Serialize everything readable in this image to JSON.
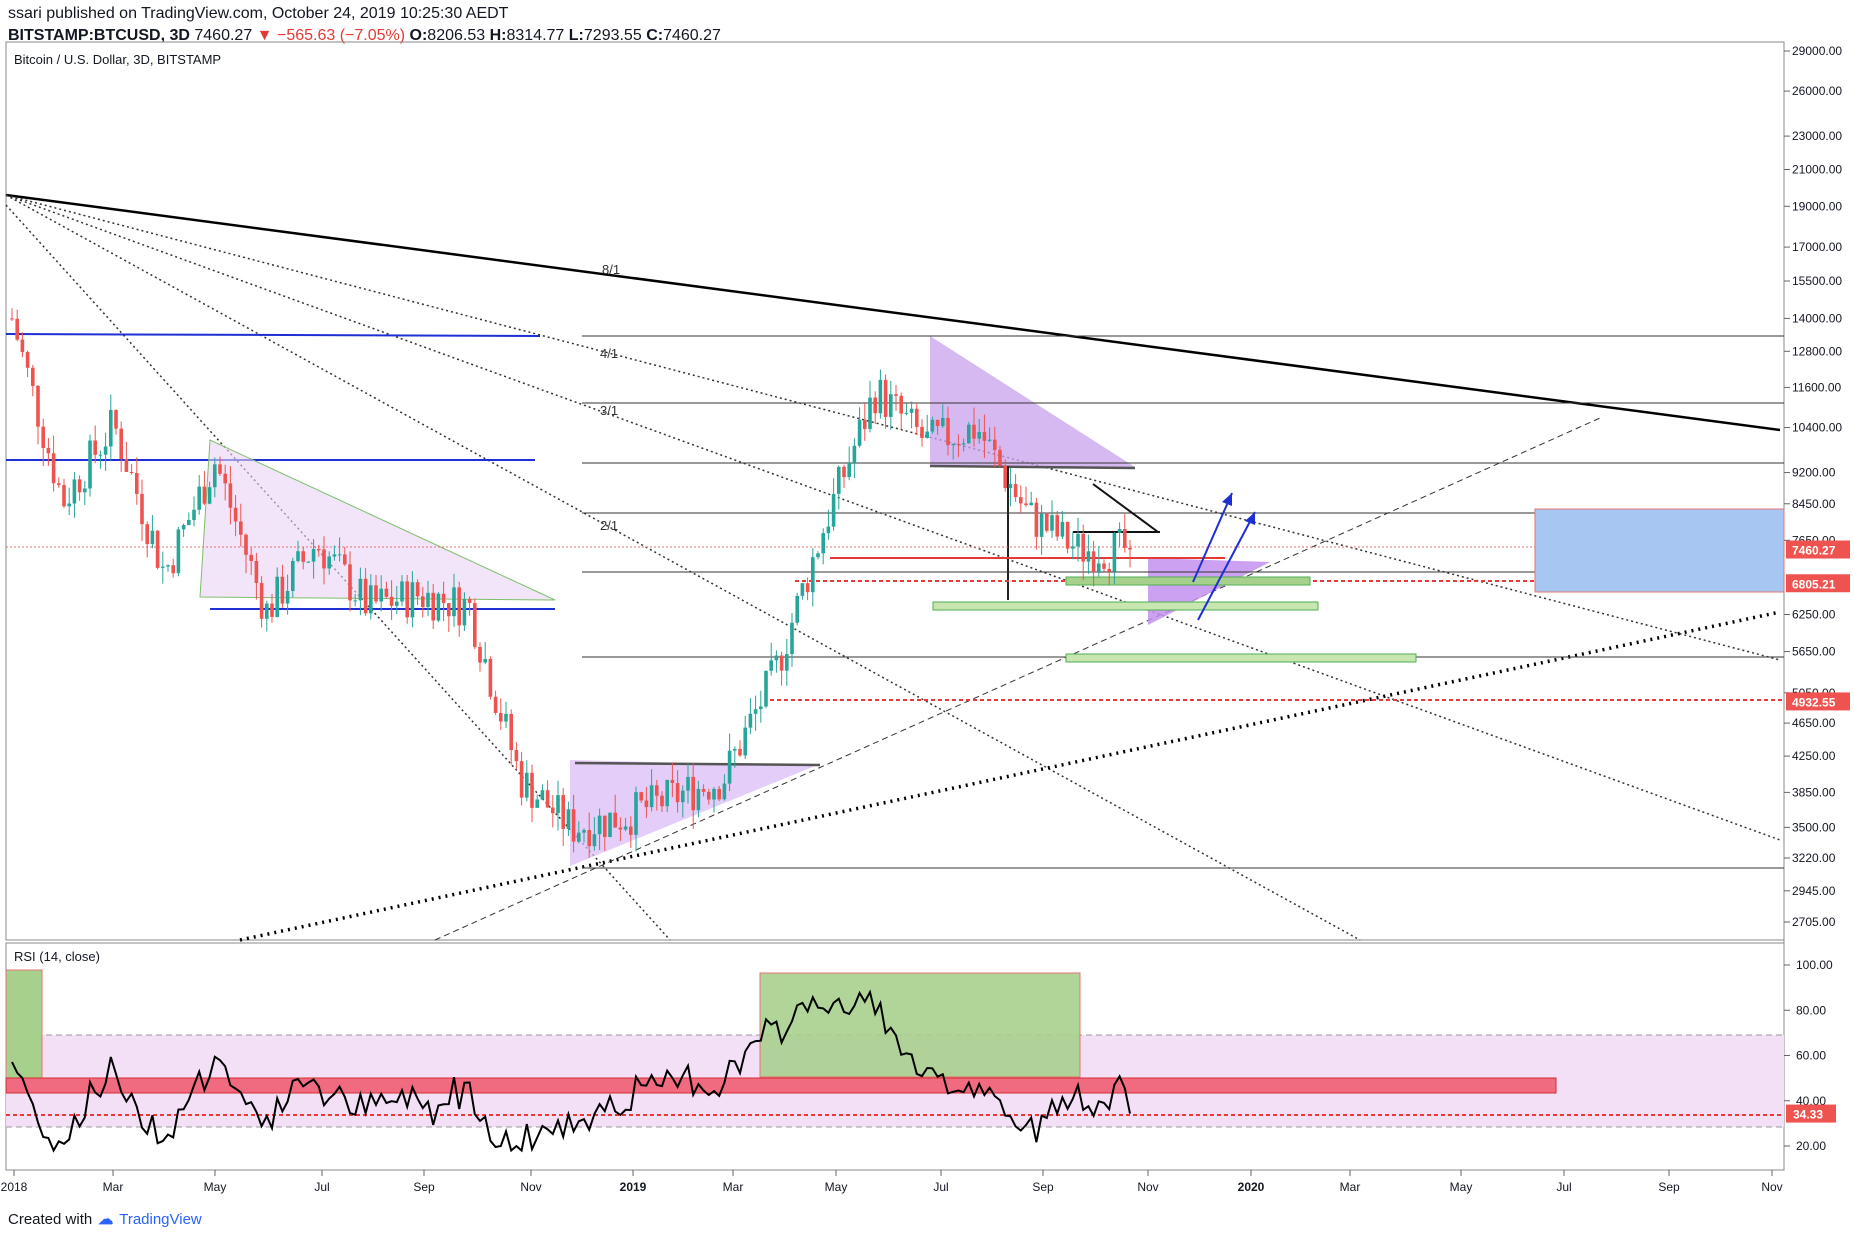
{
  "header": {
    "published_line": "ssari published on TradingView.com, October 24, 2019 10:25:30 AEDT",
    "symbol": "BITSTAMP:BTCUSD, 3D",
    "last": "7460.27",
    "change": "−565.63 (−7.05%)",
    "o_label": "O:",
    "o": "8206.53",
    "h_label": "H:",
    "h": "8314.77",
    "l_label": "L:",
    "l": "7293.55",
    "c_label": "C:",
    "c": "7460.27"
  },
  "chart_title": "Bitcoin / U.S. Dollar, 3D, BITSTAMP",
  "rsi_title": "RSI (14, close)",
  "footer": {
    "created_with": "Created with",
    "brand": "TradingView"
  },
  "colors": {
    "up": "#26a69a",
    "down": "#ef5350",
    "rsi_line": "#000000",
    "rsi_band": "#f3e0f7",
    "red_zone": "#f06a80",
    "green_zone": "#a8d08d",
    "blue_zone": "#a7c7f2",
    "purple_triangle": "#c9a1ee"
  },
  "chart_data": [
    {
      "type": "candlestick",
      "title": "Bitcoin / U.S. Dollar, 3D, BITSTAMP",
      "y_scale": "log",
      "y_ticks": [
        29000,
        26000,
        23000,
        21000,
        19000,
        17000,
        15500,
        14000,
        12800,
        11600,
        10400,
        9200,
        8450,
        7650,
        6250,
        5650,
        5050,
        4650,
        4250,
        3850,
        3500,
        3220,
        2945,
        2705
      ],
      "y_tick_labels": [
        "29000.00",
        "26000.00",
        "23000.00",
        "21000.00",
        "19000.00",
        "17000.00",
        "15500.00",
        "14000.00",
        "12800.00",
        "11600.00",
        "10400.00",
        "9200.00",
        "8450.00",
        "7650.00",
        "6250.00",
        "5650.00",
        "5050.00",
        "4650.00",
        "4250.00",
        "3850.00",
        "3500.00",
        "3220.00",
        "2945.00",
        "2705.00"
      ],
      "price_labels": [
        {
          "label": "7460.27",
          "value": 7460.27,
          "color": "#ef5350"
        },
        {
          "label": "6805.21",
          "value": 6805.21,
          "color": "#ef5350"
        },
        {
          "label": "4932.55",
          "value": 4932.55,
          "color": "#ef5350"
        }
      ],
      "x_ticks": [
        "2018",
        "Mar",
        "May",
        "Jul",
        "Sep",
        "Nov",
        "2019",
        "Mar",
        "May",
        "Jul",
        "Sep",
        "Nov",
        "2020",
        "Mar",
        "May",
        "Jul",
        "Sep",
        "Nov"
      ],
      "fan_labels": [
        "8/1",
        "4/1",
        "3/1",
        "2/1"
      ],
      "last_close": 7460.27,
      "price_path_approx": [
        {
          "t": "2018-01",
          "p": 14000
        },
        {
          "t": "2018-02",
          "p": 8500
        },
        {
          "t": "2018-03",
          "p": 10500
        },
        {
          "t": "2018-04",
          "p": 7000
        },
        {
          "t": "2018-05",
          "p": 9500
        },
        {
          "t": "2018-06",
          "p": 6300
        },
        {
          "t": "2018-07",
          "p": 7600
        },
        {
          "t": "2018-08",
          "p": 6400
        },
        {
          "t": "2018-09",
          "p": 6600
        },
        {
          "t": "2018-10",
          "p": 6400
        },
        {
          "t": "2018-11",
          "p": 4000
        },
        {
          "t": "2018-12",
          "p": 3500
        },
        {
          "t": "2019-01",
          "p": 3600
        },
        {
          "t": "2019-02",
          "p": 3800
        },
        {
          "t": "2019-03",
          "p": 4000
        },
        {
          "t": "2019-04",
          "p": 5300
        },
        {
          "t": "2019-05",
          "p": 8000
        },
        {
          "t": "2019-06",
          "p": 11500
        },
        {
          "t": "2019-07",
          "p": 10000
        },
        {
          "t": "2019-08",
          "p": 10400
        },
        {
          "t": "2019-09",
          "p": 8200
        },
        {
          "t": "2019-10",
          "p": 7460
        }
      ]
    },
    {
      "type": "line",
      "title": "RSI (14, close)",
      "y_ticks": [
        100,
        80,
        60,
        40,
        20
      ],
      "y_tick_labels": [
        "100.00",
        "80.00",
        "60.00",
        "40.00",
        "20.00"
      ],
      "bands": [
        30,
        70
      ],
      "value_label": "34.33",
      "last_value": 34.33
    }
  ]
}
